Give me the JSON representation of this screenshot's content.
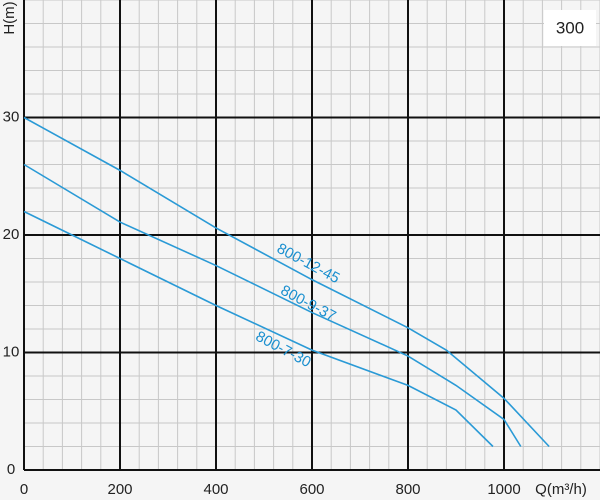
{
  "chart_data": {
    "type": "line",
    "model": "300",
    "xlabel": "Q(m³/h)",
    "ylabel": "H(m)",
    "xlim": [
      0,
      1200
    ],
    "ylim": [
      0,
      40
    ],
    "xticks": [
      0,
      200,
      400,
      600,
      800,
      1000
    ],
    "yticks": [
      0,
      10,
      20,
      30
    ],
    "minor_xstep": 40,
    "minor_ystep": 2,
    "grid": true,
    "series": [
      {
        "name": "800-12-45",
        "color": "#2a9ad6",
        "x": [
          0,
          200,
          400,
          600,
          800,
          880,
          1000,
          1094
        ],
        "values": [
          30,
          25.5,
          20.6,
          16.2,
          12.1,
          10.2,
          6.1,
          2
        ]
      },
      {
        "name": "800-9-37",
        "color": "#2a9ad6",
        "x": [
          0,
          200,
          400,
          600,
          800,
          900,
          1000,
          1035
        ],
        "values": [
          26,
          21.1,
          17.4,
          13.4,
          9.7,
          7.2,
          4.3,
          2
        ]
      },
      {
        "name": "800-7-30",
        "color": "#2a9ad6",
        "x": [
          0,
          100,
          200,
          400,
          600,
          800,
          900,
          977
        ],
        "values": [
          22,
          20,
          18,
          14,
          10.2,
          7.2,
          5.1,
          2
        ]
      }
    ]
  }
}
